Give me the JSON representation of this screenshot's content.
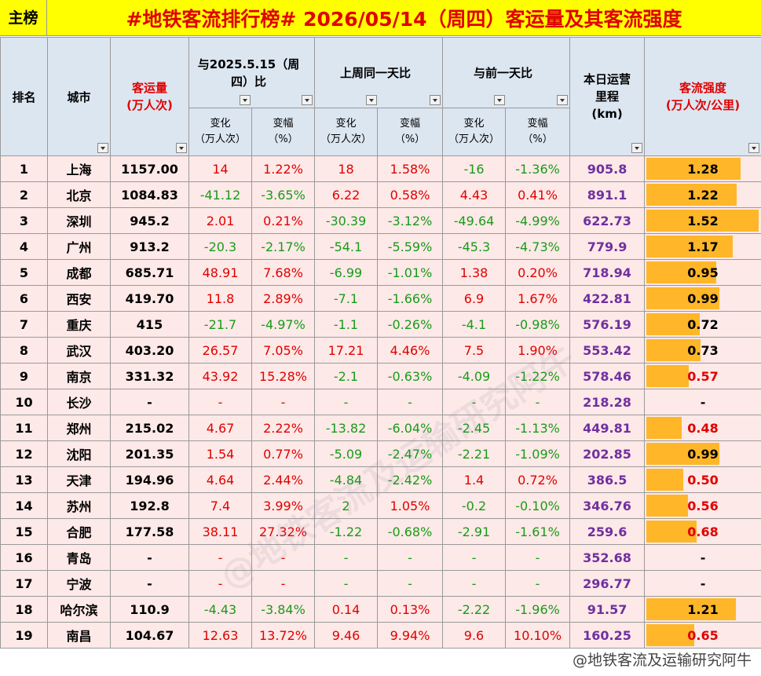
{
  "header": {
    "tag": "主榜",
    "title": "#地铁客流排行榜# 2026/05/14（周四）客运量及其客流强度"
  },
  "table": {
    "columns": {
      "rank": "排名",
      "city": "城市",
      "volume": [
        "客运量",
        "(万人次)"
      ],
      "groups": [
        "与2025.5.15（周四）比",
        "上周同一天比",
        "与前一天比"
      ],
      "change": [
        "变化",
        "（万人次）"
      ],
      "pct": [
        "变幅",
        "（%）"
      ],
      "mileage": [
        "本日运营",
        "里程",
        "(km)"
      ],
      "intensity": [
        "客流强度",
        "(万人次/公里)"
      ]
    },
    "rows": [
      [
        "1",
        "上海",
        "1157.00",
        "14",
        "1.22%",
        "18",
        "1.58%",
        "-16",
        "-1.36%",
        "905.8",
        "1.28"
      ],
      [
        "2",
        "北京",
        "1084.83",
        "-41.12",
        "-3.65%",
        "6.22",
        "0.58%",
        "4.43",
        "0.41%",
        "891.1",
        "1.22"
      ],
      [
        "3",
        "深圳",
        "945.2",
        "2.01",
        "0.21%",
        "-30.39",
        "-3.12%",
        "-49.64",
        "-4.99%",
        "622.73",
        "1.52"
      ],
      [
        "4",
        "广州",
        "913.2",
        "-20.3",
        "-2.17%",
        "-54.1",
        "-5.59%",
        "-45.3",
        "-4.73%",
        "779.9",
        "1.17"
      ],
      [
        "5",
        "成都",
        "685.71",
        "48.91",
        "7.68%",
        "-6.99",
        "-1.01%",
        "1.38",
        "0.20%",
        "718.94",
        "0.95"
      ],
      [
        "6",
        "西安",
        "419.70",
        "11.8",
        "2.89%",
        "-7.1",
        "-1.66%",
        "6.9",
        "1.67%",
        "422.81",
        "0.99"
      ],
      [
        "7",
        "重庆",
        "415",
        "-21.7",
        "-4.97%",
        "-1.1",
        "-0.26%",
        "-4.1",
        "-0.98%",
        "576.19",
        "0.72"
      ],
      [
        "8",
        "武汉",
        "403.20",
        "26.57",
        "7.05%",
        "17.21",
        "4.46%",
        "7.5",
        "1.90%",
        "553.42",
        "0.73"
      ],
      [
        "9",
        "南京",
        "331.32",
        "43.92",
        "15.28%",
        "-2.1",
        "-0.63%",
        "-4.09",
        "-1.22%",
        "578.46",
        "0.57"
      ],
      [
        "10",
        "长沙",
        "-",
        "-",
        "-",
        "-",
        "-",
        "-",
        "-",
        "218.28",
        "-"
      ],
      [
        "11",
        "郑州",
        "215.02",
        "4.67",
        "2.22%",
        "-13.82",
        "-6.04%",
        "-2.45",
        "-1.13%",
        "449.81",
        "0.48"
      ],
      [
        "12",
        "沈阳",
        "201.35",
        "1.54",
        "0.77%",
        "-5.09",
        "-2.47%",
        "-2.21",
        "-1.09%",
        "202.85",
        "0.99"
      ],
      [
        "13",
        "天津",
        "194.96",
        "4.64",
        "2.44%",
        "-4.84",
        "-2.42%",
        "1.4",
        "0.72%",
        "386.5",
        "0.50"
      ],
      [
        "14",
        "苏州",
        "192.8",
        "7.4",
        "3.99%",
        "2",
        "1.05%",
        "-0.2",
        "-0.10%",
        "346.76",
        "0.56"
      ],
      [
        "15",
        "合肥",
        "177.58",
        "38.11",
        "27.32%",
        "-1.22",
        "-0.68%",
        "-2.91",
        "-1.61%",
        "259.6",
        "0.68"
      ],
      [
        "16",
        "青岛",
        "-",
        "-",
        "-",
        "-",
        "-",
        "-",
        "-",
        "352.68",
        "-"
      ],
      [
        "17",
        "宁波",
        "-",
        "-",
        "-",
        "-",
        "-",
        "-",
        "-",
        "296.77",
        "-"
      ],
      [
        "18",
        "哈尔滨",
        "110.9",
        "-4.43",
        "-3.84%",
        "0.14",
        "0.13%",
        "-2.22",
        "-1.96%",
        "91.57",
        "1.21"
      ],
      [
        "19",
        "南昌",
        "104.67",
        "12.63",
        "13.72%",
        "9.46",
        "9.94%",
        "9.6",
        "10.10%",
        "160.25",
        "0.65"
      ]
    ]
  },
  "watermark": "@地铁客流及运输研究阿牛"
}
